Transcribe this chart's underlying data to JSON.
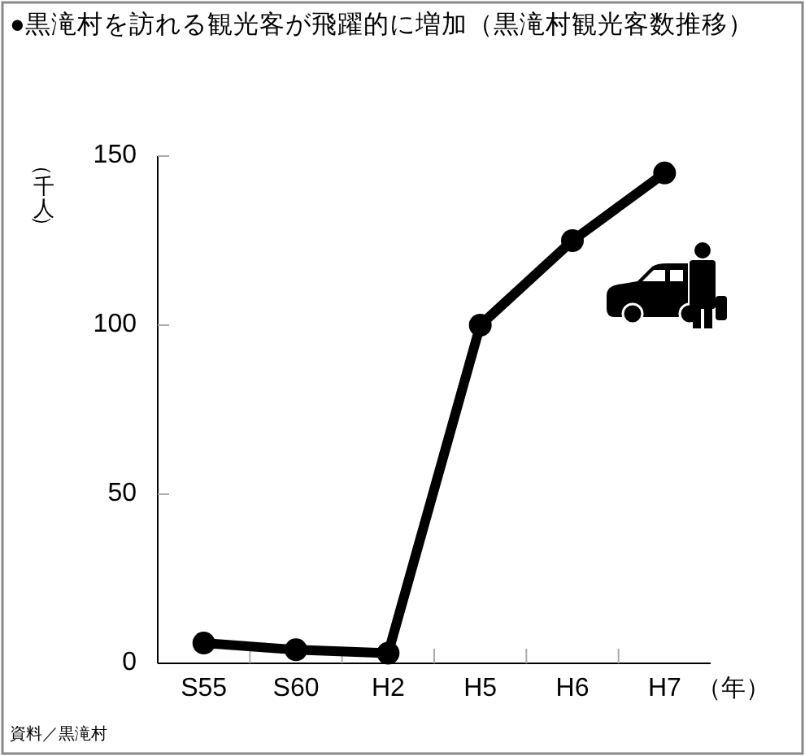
{
  "chart_data": {
    "type": "line",
    "title": "●黒滝村を訪れる観光客が飛躍的に増加（黒滝村観光客数推移）",
    "ylabel": "（千人）",
    "xlabel": "（年）",
    "categories": [
      "S55",
      "S60",
      "H2",
      "H5",
      "H6",
      "H7"
    ],
    "series": [
      {
        "color": "#000000",
        "values": [
          6,
          4,
          3,
          100,
          125,
          145
        ]
      }
    ],
    "ylim": [
      0,
      150
    ],
    "yticks": [
      0,
      50,
      100,
      150
    ],
    "marker": "circle",
    "line_style": "solid",
    "annotations": [
      "資料／黒滝村"
    ]
  }
}
